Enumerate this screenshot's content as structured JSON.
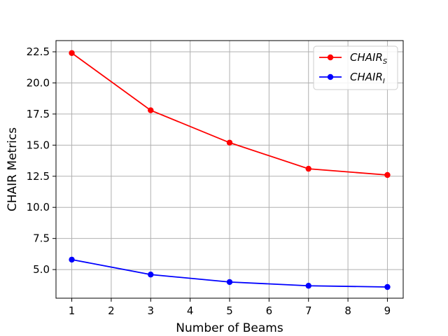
{
  "chart_data": {
    "type": "line",
    "title": "",
    "xlabel": "Number of Beams",
    "ylabel": "CHAIR Metrics",
    "x_ticks": [
      "1",
      "2",
      "3",
      "4",
      "5",
      "6",
      "7",
      "8",
      "9"
    ],
    "y_ticks": [
      "5.0",
      "7.5",
      "10.0",
      "12.5",
      "15.0",
      "17.5",
      "20.0",
      "22.5"
    ],
    "xlim": [
      0.6,
      9.4
    ],
    "ylim": [
      2.7,
      23.4
    ],
    "grid": true,
    "legend_position": "top-right",
    "x": [
      1,
      3,
      5,
      7,
      9
    ],
    "series": [
      {
        "name": "CHAIR",
        "subscript": "S",
        "color": "#ff0000",
        "values": [
          22.4,
          17.8,
          15.2,
          13.1,
          12.6
        ]
      },
      {
        "name": "CHAIR",
        "subscript": "I",
        "color": "#0000ff",
        "values": [
          5.8,
          4.6,
          4.0,
          3.7,
          3.6
        ]
      }
    ]
  }
}
